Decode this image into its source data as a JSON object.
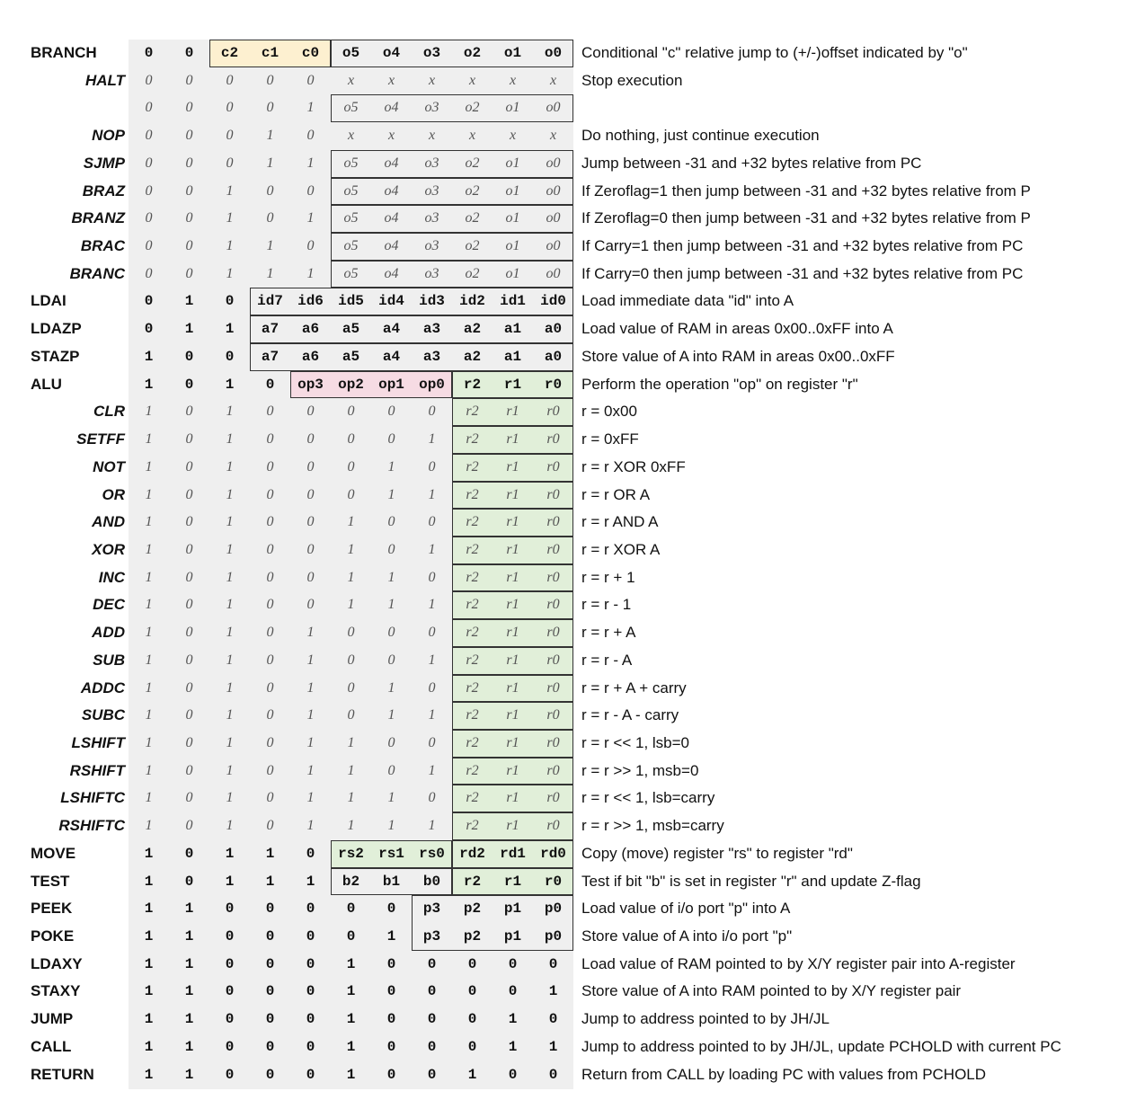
{
  "rows": [
    {
      "label": "BRANCH",
      "indent": false,
      "bits": [
        "0",
        "0",
        "c2",
        "c1",
        "c0",
        "o5",
        "o4",
        "o3",
        "o2",
        "o1",
        "o0"
      ],
      "desc": "Conditional \"c\" relative jump to (+/-)offset indicated by \"o\""
    },
    {
      "label": "HALT",
      "indent": true,
      "bits": [
        "0",
        "0",
        "0",
        "0",
        "0",
        "x",
        "x",
        "x",
        "x",
        "x",
        "x"
      ],
      "desc": "Stop execution"
    },
    {
      "label": "",
      "indent": true,
      "bits": [
        "0",
        "0",
        "0",
        "0",
        "1",
        "o5",
        "o4",
        "o3",
        "o2",
        "o1",
        "o0"
      ],
      "desc": ""
    },
    {
      "label": "NOP",
      "indent": true,
      "bits": [
        "0",
        "0",
        "0",
        "1",
        "0",
        "x",
        "x",
        "x",
        "x",
        "x",
        "x"
      ],
      "desc": "Do nothing, just continue execution"
    },
    {
      "label": "SJMP",
      "indent": true,
      "bits": [
        "0",
        "0",
        "0",
        "1",
        "1",
        "o5",
        "o4",
        "o3",
        "o2",
        "o1",
        "o0"
      ],
      "desc": "Jump between -31 and +32 bytes relative from PC"
    },
    {
      "label": "BRAZ",
      "indent": true,
      "bits": [
        "0",
        "0",
        "1",
        "0",
        "0",
        "o5",
        "o4",
        "o3",
        "o2",
        "o1",
        "o0"
      ],
      "desc": "If Zeroflag=1 then jump between -31 and +32 bytes relative from P"
    },
    {
      "label": "BRANZ",
      "indent": true,
      "bits": [
        "0",
        "0",
        "1",
        "0",
        "1",
        "o5",
        "o4",
        "o3",
        "o2",
        "o1",
        "o0"
      ],
      "desc": "If Zeroflag=0 then jump between -31 and +32 bytes relative from P"
    },
    {
      "label": "BRAC",
      "indent": true,
      "bits": [
        "0",
        "0",
        "1",
        "1",
        "0",
        "o5",
        "o4",
        "o3",
        "o2",
        "o1",
        "o0"
      ],
      "desc": "If Carry=1 then jump between -31 and +32 bytes relative from PC"
    },
    {
      "label": "BRANC",
      "indent": true,
      "bits": [
        "0",
        "0",
        "1",
        "1",
        "1",
        "o5",
        "o4",
        "o3",
        "o2",
        "o1",
        "o0"
      ],
      "desc": "If Carry=0 then jump between -31 and +32 bytes relative from PC"
    },
    {
      "label": "LDAI",
      "indent": false,
      "bits": [
        "0",
        "1",
        "0",
        "id7",
        "id6",
        "id5",
        "id4",
        "id3",
        "id2",
        "id1",
        "id0"
      ],
      "desc": "Load immediate data \"id\" into A"
    },
    {
      "label": "LDAZP",
      "indent": false,
      "bits": [
        "0",
        "1",
        "1",
        "a7",
        "a6",
        "a5",
        "a4",
        "a3",
        "a2",
        "a1",
        "a0"
      ],
      "desc": "Load value of RAM in areas 0x00..0xFF into A"
    },
    {
      "label": "STAZP",
      "indent": false,
      "bits": [
        "1",
        "0",
        "0",
        "a7",
        "a6",
        "a5",
        "a4",
        "a3",
        "a2",
        "a1",
        "a0"
      ],
      "desc": "Store value of A  into RAM in areas 0x00..0xFF"
    },
    {
      "label": "ALU",
      "indent": false,
      "bits": [
        "1",
        "0",
        "1",
        "0",
        "op3",
        "op2",
        "op1",
        "op0",
        "r2",
        "r1",
        "r0"
      ],
      "desc": "Perform the operation \"op\" on register \"r\""
    },
    {
      "label": "CLR",
      "indent": true,
      "bits": [
        "1",
        "0",
        "1",
        "0",
        "0",
        "0",
        "0",
        "0",
        "r2",
        "r1",
        "r0"
      ],
      "desc": "r = 0x00"
    },
    {
      "label": "SETFF",
      "indent": true,
      "bits": [
        "1",
        "0",
        "1",
        "0",
        "0",
        "0",
        "0",
        "1",
        "r2",
        "r1",
        "r0"
      ],
      "desc": "r = 0xFF"
    },
    {
      "label": "NOT",
      "indent": true,
      "bits": [
        "1",
        "0",
        "1",
        "0",
        "0",
        "0",
        "1",
        "0",
        "r2",
        "r1",
        "r0"
      ],
      "desc": "r = r XOR 0xFF"
    },
    {
      "label": "OR",
      "indent": true,
      "bits": [
        "1",
        "0",
        "1",
        "0",
        "0",
        "0",
        "1",
        "1",
        "r2",
        "r1",
        "r0"
      ],
      "desc": "r = r OR A"
    },
    {
      "label": "AND",
      "indent": true,
      "bits": [
        "1",
        "0",
        "1",
        "0",
        "0",
        "1",
        "0",
        "0",
        "r2",
        "r1",
        "r0"
      ],
      "desc": "r = r AND A"
    },
    {
      "label": "XOR",
      "indent": true,
      "bits": [
        "1",
        "0",
        "1",
        "0",
        "0",
        "1",
        "0",
        "1",
        "r2",
        "r1",
        "r0"
      ],
      "desc": "r = r XOR A"
    },
    {
      "label": "INC",
      "indent": true,
      "bits": [
        "1",
        "0",
        "1",
        "0",
        "0",
        "1",
        "1",
        "0",
        "r2",
        "r1",
        "r0"
      ],
      "desc": "r = r + 1"
    },
    {
      "label": "DEC",
      "indent": true,
      "bits": [
        "1",
        "0",
        "1",
        "0",
        "0",
        "1",
        "1",
        "1",
        "r2",
        "r1",
        "r0"
      ],
      "desc": "r = r - 1"
    },
    {
      "label": "ADD",
      "indent": true,
      "bits": [
        "1",
        "0",
        "1",
        "0",
        "1",
        "0",
        "0",
        "0",
        "r2",
        "r1",
        "r0"
      ],
      "desc": "r = r + A"
    },
    {
      "label": "SUB",
      "indent": true,
      "bits": [
        "1",
        "0",
        "1",
        "0",
        "1",
        "0",
        "0",
        "1",
        "r2",
        "r1",
        "r0"
      ],
      "desc": "r = r - A"
    },
    {
      "label": "ADDC",
      "indent": true,
      "bits": [
        "1",
        "0",
        "1",
        "0",
        "1",
        "0",
        "1",
        "0",
        "r2",
        "r1",
        "r0"
      ],
      "desc": "r = r + A + carry"
    },
    {
      "label": "SUBC",
      "indent": true,
      "bits": [
        "1",
        "0",
        "1",
        "0",
        "1",
        "0",
        "1",
        "1",
        "r2",
        "r1",
        "r0"
      ],
      "desc": "r = r - A - carry"
    },
    {
      "label": "LSHIFT",
      "indent": true,
      "bits": [
        "1",
        "0",
        "1",
        "0",
        "1",
        "1",
        "0",
        "0",
        "r2",
        "r1",
        "r0"
      ],
      "desc": "r = r << 1, lsb=0"
    },
    {
      "label": "RSHIFT",
      "indent": true,
      "bits": [
        "1",
        "0",
        "1",
        "0",
        "1",
        "1",
        "0",
        "1",
        "r2",
        "r1",
        "r0"
      ],
      "desc": "r = r >> 1, msb=0"
    },
    {
      "label": "LSHIFTC",
      "indent": true,
      "bits": [
        "1",
        "0",
        "1",
        "0",
        "1",
        "1",
        "1",
        "0",
        "r2",
        "r1",
        "r0"
      ],
      "desc": "r = r << 1, lsb=carry"
    },
    {
      "label": "RSHIFTC",
      "indent": true,
      "bits": [
        "1",
        "0",
        "1",
        "0",
        "1",
        "1",
        "1",
        "1",
        "r2",
        "r1",
        "r0"
      ],
      "desc": "r = r >> 1, msb=carry"
    },
    {
      "label": "MOVE",
      "indent": false,
      "bits": [
        "1",
        "0",
        "1",
        "1",
        "0",
        "rs2",
        "rs1",
        "rs0",
        "rd2",
        "rd1",
        "rd0"
      ],
      "desc": "Copy (move) register \"rs\" to register \"rd\""
    },
    {
      "label": "TEST",
      "indent": false,
      "bits": [
        "1",
        "0",
        "1",
        "1",
        "1",
        "b2",
        "b1",
        "b0",
        "r2",
        "r1",
        "r0"
      ],
      "desc": "Test if bit \"b\" is set in register \"r\" and update Z-flag"
    },
    {
      "label": "PEEK",
      "indent": false,
      "bits": [
        "1",
        "1",
        "0",
        "0",
        "0",
        "0",
        "0",
        "p3",
        "p2",
        "p1",
        "p0"
      ],
      "desc": "Load value of i/o port \"p\" into A"
    },
    {
      "label": "POKE",
      "indent": false,
      "bits": [
        "1",
        "1",
        "0",
        "0",
        "0",
        "0",
        "1",
        "p3",
        "p2",
        "p1",
        "p0"
      ],
      "desc": "Store value of A into i/o port \"p\""
    },
    {
      "label": "LDAXY",
      "indent": false,
      "bits": [
        "1",
        "1",
        "0",
        "0",
        "0",
        "1",
        "0",
        "0",
        "0",
        "0",
        "0"
      ],
      "desc": "Load value of RAM pointed to by X/Y register pair into A-register"
    },
    {
      "label": "STAXY",
      "indent": false,
      "bits": [
        "1",
        "1",
        "0",
        "0",
        "0",
        "1",
        "0",
        "0",
        "0",
        "0",
        "1"
      ],
      "desc": "Store value of A  into RAM pointed to by X/Y register pair"
    },
    {
      "label": "JUMP",
      "indent": false,
      "bits": [
        "1",
        "1",
        "0",
        "0",
        "0",
        "1",
        "0",
        "0",
        "0",
        "1",
        "0"
      ],
      "desc": "Jump to address pointed to by JH/JL"
    },
    {
      "label": "CALL",
      "indent": false,
      "bits": [
        "1",
        "1",
        "0",
        "0",
        "0",
        "1",
        "0",
        "0",
        "0",
        "1",
        "1"
      ],
      "desc": "Jump to address pointed to by JH/JL, update PCHOLD with current PC"
    },
    {
      "label": "RETURN",
      "indent": false,
      "bits": [
        "1",
        "1",
        "0",
        "0",
        "0",
        "1",
        "0",
        "0",
        "1",
        "0",
        "0"
      ],
      "desc": "Return from CALL by loading PC with values from PCHOLD"
    }
  ]
}
